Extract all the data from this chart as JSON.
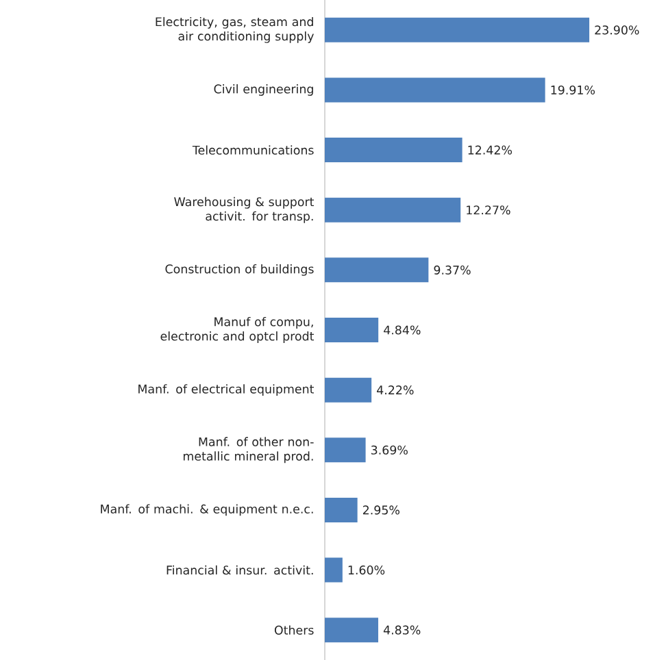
{
  "chart_data": {
    "type": "bar",
    "orientation": "horizontal",
    "categories": [
      "Electricity, gas, steam and air conditioning supply",
      "Civil engineering",
      "Telecommunications",
      "Warehousing & support activit. for transp.",
      "Construction of buildings",
      "Manuf of compu, electronic and optcl prodt",
      "Manf. of electrical equipment",
      "Manf. of other non-metallic mineral prod.",
      "Manf. of machi. & equipment n.e.c.",
      "Financial & insur. activit.",
      "Others"
    ],
    "values": [
      23.9,
      19.91,
      12.42,
      12.27,
      9.37,
      4.84,
      4.22,
      3.69,
      2.95,
      1.6,
      4.83
    ],
    "value_labels": [
      "23.90%",
      "19.91%",
      "12.42%",
      "12.27%",
      "9.37%",
      "4.84%",
      "4.22%",
      "3.69%",
      "2.95%",
      "1.60%",
      "4.83%"
    ],
    "color": "#4f81bd"
  }
}
